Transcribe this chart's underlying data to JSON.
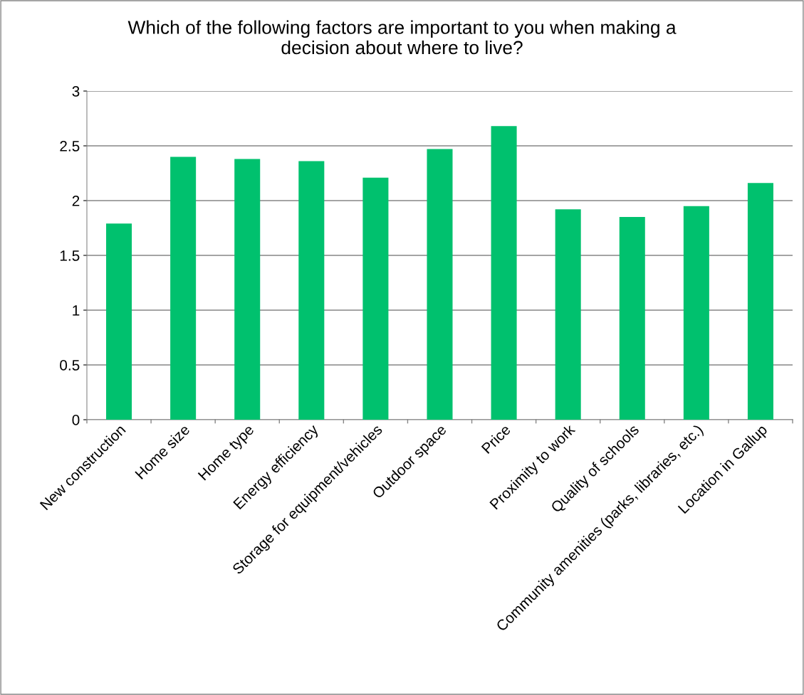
{
  "chart_data": {
    "type": "bar",
    "title": "Which of the following factors are important to you when making a\ndecision about where to live?",
    "categories": [
      "New construction",
      "Home size",
      "Home type",
      "Energy efficiency",
      "Storage for equipment/vehicles",
      "Outdoor space",
      "Price",
      "Proximity to work",
      "Quality of schools",
      "Community amenities (parks, libraries, etc.)",
      "Location in Gallup"
    ],
    "values": [
      1.79,
      2.4,
      2.38,
      2.36,
      2.21,
      2.47,
      2.68,
      1.92,
      1.85,
      1.95,
      2.16
    ],
    "color": "#00c16e",
    "ylim": [
      0,
      3
    ],
    "yticks": [
      0,
      0.5,
      1,
      1.5,
      2,
      2.5,
      3
    ],
    "grid": "y"
  }
}
